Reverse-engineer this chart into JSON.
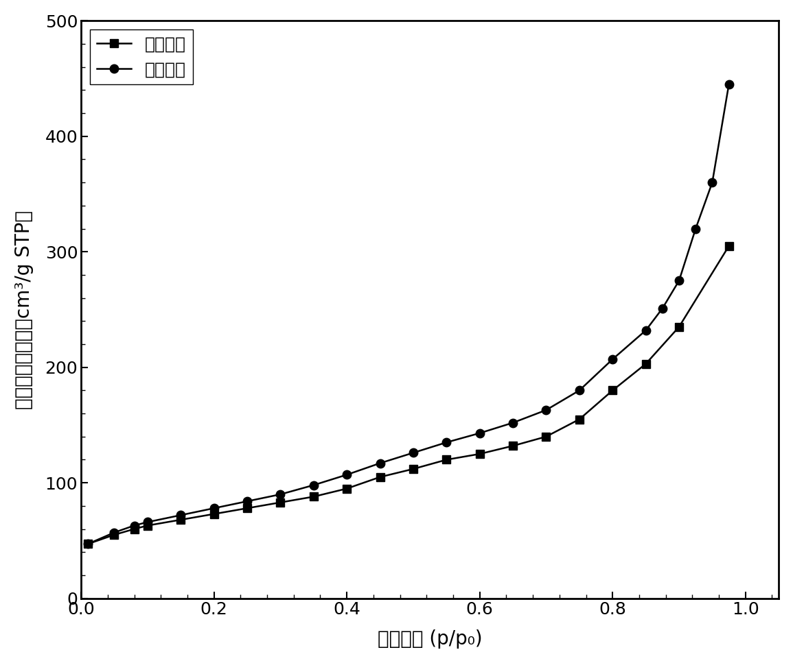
{
  "adsorption_x": [
    0.01,
    0.05,
    0.08,
    0.1,
    0.15,
    0.2,
    0.25,
    0.3,
    0.35,
    0.4,
    0.45,
    0.5,
    0.55,
    0.6,
    0.65,
    0.7,
    0.75,
    0.8,
    0.85,
    0.9,
    0.975
  ],
  "adsorption_y": [
    47,
    55,
    60,
    63,
    68,
    73,
    78,
    83,
    88,
    95,
    105,
    112,
    120,
    125,
    132,
    140,
    155,
    180,
    203,
    235,
    305
  ],
  "desorption_x": [
    0.01,
    0.05,
    0.08,
    0.1,
    0.15,
    0.2,
    0.25,
    0.3,
    0.35,
    0.4,
    0.45,
    0.5,
    0.55,
    0.6,
    0.65,
    0.7,
    0.75,
    0.8,
    0.85,
    0.875,
    0.9,
    0.925,
    0.95,
    0.975
  ],
  "desorption_y": [
    47,
    57,
    63,
    66,
    72,
    78,
    84,
    90,
    98,
    107,
    117,
    126,
    135,
    143,
    152,
    163,
    180,
    207,
    232,
    251,
    275,
    320,
    360,
    445
  ],
  "xlabel": "相对压力 (p/p₀)",
  "ylabel": "单位质量吸附量（cm³/g STP）",
  "legend_adsorption": "吸附曲线",
  "legend_desorption": "脱附曲线",
  "xlim": [
    0.0,
    1.05
  ],
  "ylim": [
    0,
    500
  ],
  "xticks": [
    0.0,
    0.2,
    0.4,
    0.6,
    0.8,
    1.0
  ],
  "yticks": [
    0,
    100,
    200,
    300,
    400,
    500
  ],
  "color": "#000000",
  "linewidth": 1.8,
  "markersize_square": 9,
  "markersize_circle": 9,
  "fontsize_label": 20,
  "fontsize_tick": 18,
  "fontsize_legend": 18
}
